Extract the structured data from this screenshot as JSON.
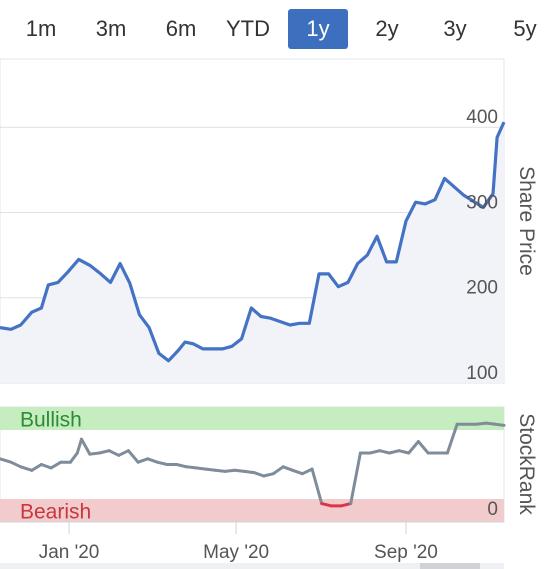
{
  "range_selector": {
    "options": [
      "1m",
      "3m",
      "6m",
      "YTD",
      "1y",
      "2y",
      "3y",
      "5y"
    ],
    "selected": "1y",
    "accent": "#3c6fbe"
  },
  "chart_data": [
    {
      "type": "line",
      "ylabel": "Share Price",
      "ylim": [
        100,
        480
      ],
      "yticks": [
        "100",
        "200",
        "300",
        "400"
      ],
      "x_range": [
        "2019-11-12",
        "2020-11-11"
      ],
      "series": [
        {
          "color": "#4472c4",
          "x": [
            "2019-11-12",
            "2019-11-20",
            "2019-11-27",
            "2019-12-05",
            "2019-12-12",
            "2019-12-17",
            "2019-12-24",
            "2019-12-31",
            "2020-01-08",
            "2020-01-16",
            "2020-01-24",
            "2020-01-31",
            "2020-02-07",
            "2020-02-14",
            "2020-02-21",
            "2020-02-28",
            "2020-03-06",
            "2020-03-13",
            "2020-03-20",
            "2020-03-25",
            "2020-03-31",
            "2020-04-07",
            "2020-04-14",
            "2020-04-21",
            "2020-04-28",
            "2020-05-05",
            "2020-05-12",
            "2020-05-19",
            "2020-05-26",
            "2020-06-02",
            "2020-06-09",
            "2020-06-16",
            "2020-06-23",
            "2020-06-30",
            "2020-07-07",
            "2020-07-14",
            "2020-07-21",
            "2020-07-28",
            "2020-08-04",
            "2020-08-11",
            "2020-08-18",
            "2020-08-25",
            "2020-09-01",
            "2020-09-08",
            "2020-09-15",
            "2020-09-22",
            "2020-09-29",
            "2020-10-06",
            "2020-10-13",
            "2020-10-20",
            "2020-10-27",
            "2020-11-03",
            "2020-11-06",
            "2020-11-11"
          ],
          "values": [
            165,
            163,
            168,
            183,
            188,
            215,
            218,
            230,
            245,
            238,
            228,
            218,
            240,
            217,
            180,
            165,
            135,
            126,
            138,
            148,
            146,
            140,
            140,
            140,
            143,
            152,
            188,
            178,
            176,
            172,
            168,
            170,
            170,
            228,
            228,
            213,
            218,
            240,
            250,
            272,
            242,
            242,
            290,
            312,
            310,
            315,
            340,
            330,
            320,
            313,
            306,
            322,
            388,
            406
          ]
        }
      ]
    },
    {
      "type": "line",
      "ylabel": "StockRank",
      "ylim": [
        0,
        100
      ],
      "yticks": [
        "0"
      ],
      "zones": [
        {
          "name": "Bullish",
          "from": 80,
          "to": 100,
          "color": "#c5edc0",
          "text_color": "#2e8b35"
        },
        {
          "name": "Bearish",
          "from": 0,
          "to": 20,
          "color": "#f2cccc",
          "text_color": "#c9363e"
        }
      ],
      "series": [
        {
          "color": "#7f8c9a",
          "highlight_color": "#d9364b",
          "highlight_below": 20,
          "x": [
            "2019-11-12",
            "2019-11-20",
            "2019-11-27",
            "2019-12-05",
            "2019-12-12",
            "2019-12-19",
            "2019-12-26",
            "2020-01-02",
            "2020-01-07",
            "2020-01-10",
            "2020-01-16",
            "2020-01-23",
            "2020-01-30",
            "2020-02-06",
            "2020-02-13",
            "2020-02-20",
            "2020-02-27",
            "2020-03-05",
            "2020-03-12",
            "2020-03-19",
            "2020-03-26",
            "2020-04-02",
            "2020-04-09",
            "2020-04-16",
            "2020-04-23",
            "2020-04-30",
            "2020-05-07",
            "2020-05-14",
            "2020-05-21",
            "2020-05-28",
            "2020-06-04",
            "2020-06-11",
            "2020-06-18",
            "2020-06-25",
            "2020-07-02",
            "2020-07-09",
            "2020-07-16",
            "2020-07-23",
            "2020-07-30",
            "2020-08-06",
            "2020-08-13",
            "2020-08-20",
            "2020-08-27",
            "2020-09-03",
            "2020-09-10",
            "2020-09-17",
            "2020-09-24",
            "2020-10-01",
            "2020-10-08",
            "2020-10-15",
            "2020-10-22",
            "2020-10-29",
            "2020-11-05",
            "2020-11-11"
          ],
          "values": [
            55,
            52,
            48,
            45,
            50,
            47,
            52,
            52,
            60,
            72,
            59,
            60,
            62,
            58,
            62,
            52,
            55,
            52,
            50,
            50,
            48,
            47,
            46,
            45,
            44,
            45,
            44,
            43,
            40,
            42,
            48,
            45,
            42,
            46,
            16,
            14,
            14,
            16,
            60,
            60,
            62,
            60,
            62,
            60,
            70,
            60,
            60,
            60,
            85,
            85,
            85,
            86,
            85,
            84
          ]
        }
      ]
    }
  ],
  "x_axis": {
    "ticks": [
      {
        "date": "2020-01-01",
        "label": "Jan '20"
      },
      {
        "date": "2020-05-01",
        "label": "May '20"
      },
      {
        "date": "2020-09-01",
        "label": "Sep '20"
      }
    ]
  }
}
